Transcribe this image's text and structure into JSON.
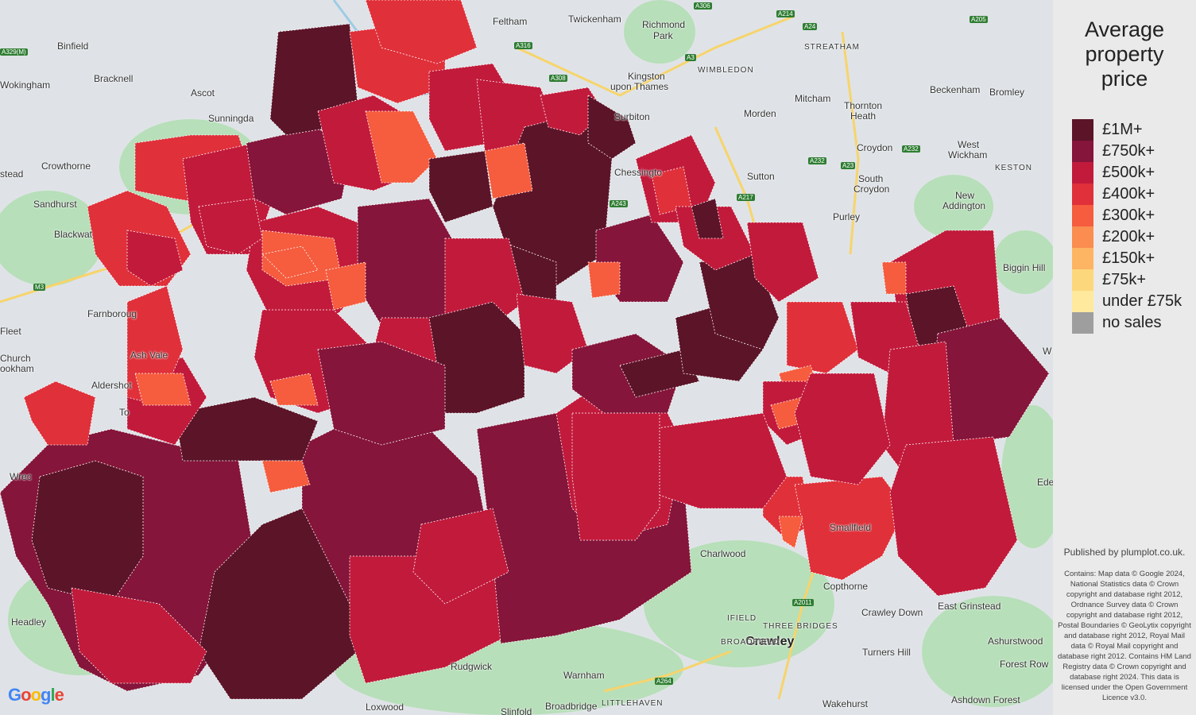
{
  "legend": {
    "title_line1": "Average",
    "title_line2": "property",
    "title_line3": "price",
    "items": [
      {
        "label": "£1M+",
        "color": "#5c1428"
      },
      {
        "label": "£750k+",
        "color": "#85153a"
      },
      {
        "label": "£500k+",
        "color": "#c21a3b"
      },
      {
        "label": "£400k+",
        "color": "#e0303a"
      },
      {
        "label": "£300k+",
        "color": "#f65c3e"
      },
      {
        "label": "£200k+",
        "color": "#fa8d4f"
      },
      {
        "label": "£150k+",
        "color": "#fdb463"
      },
      {
        "label": "£75k+",
        "color": "#fdd77c"
      },
      {
        "label": "under £75k",
        "color": "#fee99c"
      },
      {
        "label": "no sales",
        "color": "#9e9e9e"
      }
    ]
  },
  "published": "Published by plumplot.co.uk.",
  "attribution": "Contains: Map data © Google 2024, National Statistics data © Crown copyright and database right 2012, Ordnance Survey data © Crown copyright and database right 2012, Postal Boundaries © GeoLytix copyright and database right 2012, Royal Mail data © Royal Mail copyright and database right 2012. Contains HM Land Registry data © Crown copyright and database right 2024. This data is licensed under the Open Government Licence v3.0.",
  "places": {
    "binfield": "Binfield",
    "wokingham": "Wokingham",
    "bracknell": "Bracknell",
    "ascot": "Ascot",
    "sunningdale": "Sunningda",
    "crowthorne": "Crowthorne",
    "sandhurst": "Sandhurst",
    "blackwater": "Blackwat",
    "farnborough": "Farnboroug",
    "fleet": "Fleet",
    "church_crookham": "Church",
    "crookham": "ookham",
    "aldershot": "Aldershot",
    "ash_vale": "Ash Vale",
    "headley": "Headley",
    "feltham": "Feltham",
    "twickenham": "Twickenham",
    "richmond_park": "Richmond",
    "richmond_park2": "Park",
    "kingston": "Kingston",
    "kingston2": "upon Thames",
    "surbiton": "Surbiton",
    "wimbledon": "WIMBLEDON",
    "streatham": "STREATHAM",
    "mitcham": "Mitcham",
    "morden": "Morden",
    "thornton_heath": "Thornton",
    "thornton_heath2": "Heath",
    "beckenham": "Beckenham",
    "bromley": "Bromley",
    "croydon": "Croydon",
    "west_wickham": "West",
    "west_wickham2": "Wickham",
    "keston": "KESTON",
    "south_croydon": "South",
    "south_croydon2": "Croydon",
    "new_addington": "New",
    "new_addington2": "Addington",
    "purley": "Purley",
    "sutton": "Sutton",
    "chessington": "Chessingto",
    "biggin_hill": "Biggin Hill",
    "charlwood": "Charlwood",
    "copthorne": "Copthorne",
    "crawley": "Crawley",
    "crawley_down": "Crawley Down",
    "east_grinstead": "East Grinstead",
    "ifield": "IFIELD",
    "three_bridges": "THREE BRIDGES",
    "broadfield": "BROADFIELD",
    "turners_hill": "Turners Hill",
    "ashurstwood": "Ashurstwood",
    "forest_row": "Forest Row",
    "ashdown_forest": "Ashdown Forest",
    "wakehurst": "Wakehurst",
    "rudgwick": "Rudgwick",
    "warnham": "Warnham",
    "loxwood": "Loxwood",
    "slinfold": "Slinfold",
    "broadbridge": "Broadbridge",
    "littlehaven": "LITTLEHAVEN",
    "smallfield": "Smallfield",
    "wrecclesham": "Wrec",
    "tongham": "To",
    "eastead": "stead",
    "edenbridge": "Ede",
    "w_edge": "W"
  },
  "roads": {
    "a329m": "A329(M)",
    "a316": "A316",
    "a308": "A308",
    "a306": "A306",
    "a214": "A214",
    "a24": "A24",
    "a205": "A205",
    "a3": "A3",
    "a232": "A232",
    "a217": "A217",
    "a243": "A243",
    "m3": "M3",
    "a2011": "A2011",
    "a264": "A264",
    "a23": "A23"
  },
  "google_logo": [
    "G",
    "o",
    "o",
    "g",
    "l",
    "e"
  ]
}
